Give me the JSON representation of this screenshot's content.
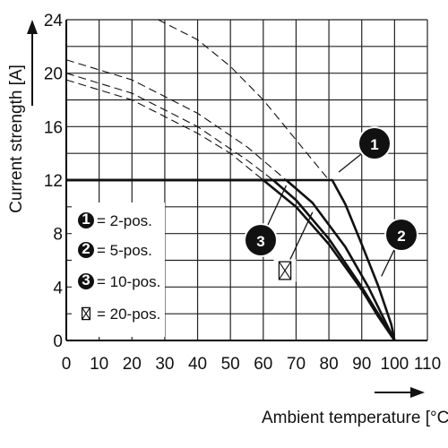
{
  "chart_data": {
    "type": "line",
    "title": "",
    "xlabel": "Ambient temperature [°C]",
    "ylabel": "Current strength [A]",
    "xlim": [
      0,
      110
    ],
    "ylim": [
      0,
      24
    ],
    "xticks": [
      "0",
      "10",
      "20",
      "30",
      "40",
      "50",
      "60",
      "70",
      "80",
      "90",
      "100",
      "110"
    ],
    "yticks": [
      "0",
      "4",
      "8",
      "12",
      "16",
      "20",
      "24"
    ],
    "grid": true,
    "legend_position": "bottom-left",
    "legend": [
      {
        "marker": "1",
        "label": "= 2-pos."
      },
      {
        "marker": "2",
        "label": "= 5-pos."
      },
      {
        "marker": "3",
        "label": "= 10-pos."
      },
      {
        "marker": "⊠",
        "label": "= 20-pos."
      }
    ],
    "series": [
      {
        "marker": "1",
        "style": "solid",
        "x": [
          0,
          81,
          85,
          90,
          95,
          99,
          100
        ],
        "y": [
          12,
          12,
          10.2,
          7.2,
          4.1,
          1.2,
          0
        ]
      },
      {
        "marker": "2",
        "style": "solid",
        "x": [
          0,
          67,
          75,
          85,
          92,
          96,
          100
        ],
        "y": [
          12,
          12,
          10.3,
          7,
          4,
          2,
          0
        ]
      },
      {
        "marker": "3",
        "style": "solid",
        "x": [
          0,
          63,
          70,
          80,
          90,
          95,
          100
        ],
        "y": [
          12,
          12,
          10.5,
          7.6,
          4,
          2,
          0
        ]
      },
      {
        "marker": "⊠",
        "style": "solid",
        "x": [
          0,
          60,
          70,
          80,
          90,
          95,
          100
        ],
        "y": [
          12,
          12,
          10,
          7.2,
          3.8,
          1.8,
          0
        ]
      },
      {
        "marker": "1",
        "style": "dashed",
        "x": [
          28,
          40,
          50,
          60,
          70,
          80
        ],
        "y": [
          24,
          22.5,
          20.5,
          18,
          15,
          12
        ]
      },
      {
        "marker": "2",
        "style": "dashed",
        "x": [
          0,
          20,
          40,
          55,
          67
        ],
        "y": [
          21,
          19.5,
          17,
          14.5,
          12
        ]
      },
      {
        "marker": "3",
        "style": "dashed",
        "x": [
          0,
          20,
          40,
          55,
          63
        ],
        "y": [
          20,
          18.5,
          16,
          13.5,
          12
        ]
      },
      {
        "marker": "⊠",
        "style": "dashed",
        "x": [
          0,
          20,
          40,
          50,
          60
        ],
        "y": [
          19.5,
          18,
          15.5,
          14,
          12
        ]
      }
    ],
    "callouts": [
      {
        "marker": "1",
        "point": [
          83,
          12.6
        ]
      },
      {
        "marker": "2",
        "point": [
          96,
          4.8
        ]
      },
      {
        "marker": "3",
        "point": [
          67,
          11.6
        ]
      },
      {
        "marker": "⊠",
        "point": [
          75,
          9.6
        ]
      }
    ]
  }
}
